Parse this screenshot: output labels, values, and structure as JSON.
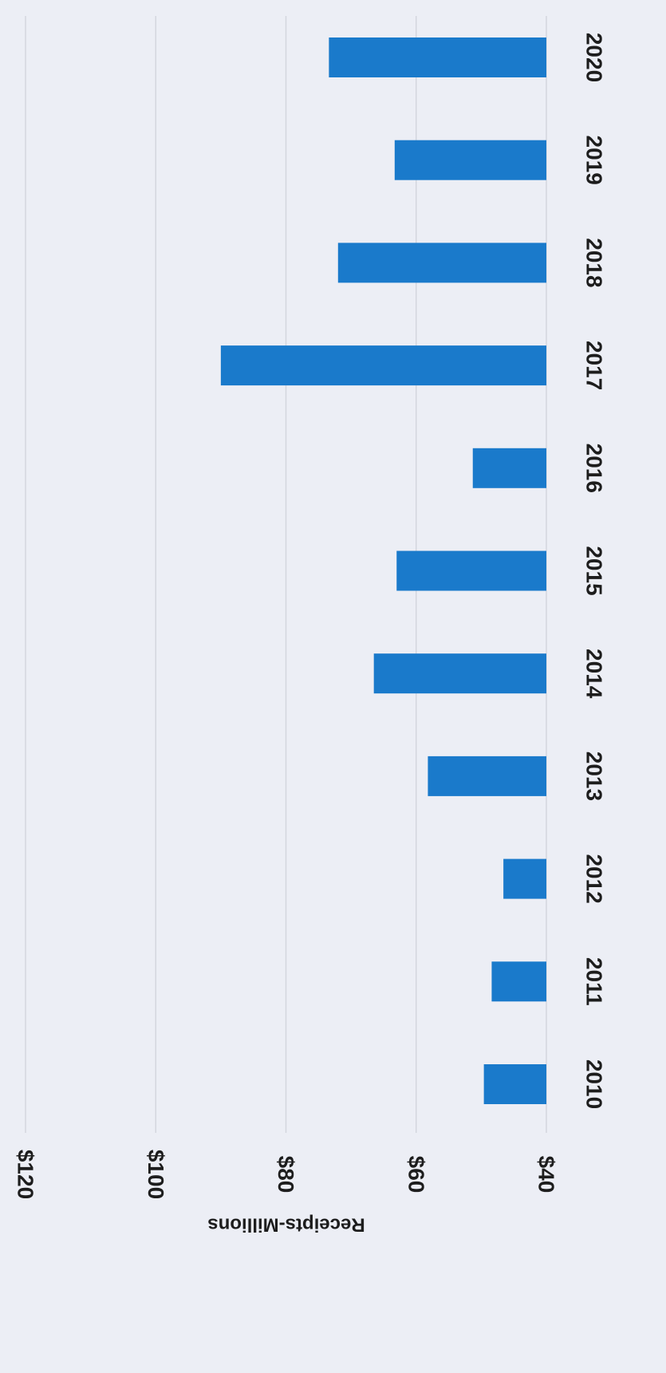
{
  "chart_data": {
    "type": "bar",
    "orientation": "vertical (rendered rotated 90° clockwise)",
    "categories": [
      "2010",
      "2011",
      "2012",
      "2013",
      "2014",
      "2015",
      "2016",
      "2017",
      "2018",
      "2019",
      "2020"
    ],
    "values": [
      49.6,
      48.4,
      46.6,
      58.2,
      66.5,
      63.0,
      51.3,
      90.0,
      72.0,
      63.3,
      73.4
    ],
    "ylabel": "Receipts-Millions",
    "xlabel": "",
    "title": "",
    "ylim": [
      40,
      120
    ],
    "y_ticks": [
      "$40",
      "$60",
      "$80",
      "$100",
      "$120"
    ],
    "grid": true,
    "legend": "none"
  },
  "colors": {
    "background": "#eceef5",
    "bar": "#1a7acb",
    "text": "#1d1d1d",
    "grid": "#d3d6de"
  }
}
